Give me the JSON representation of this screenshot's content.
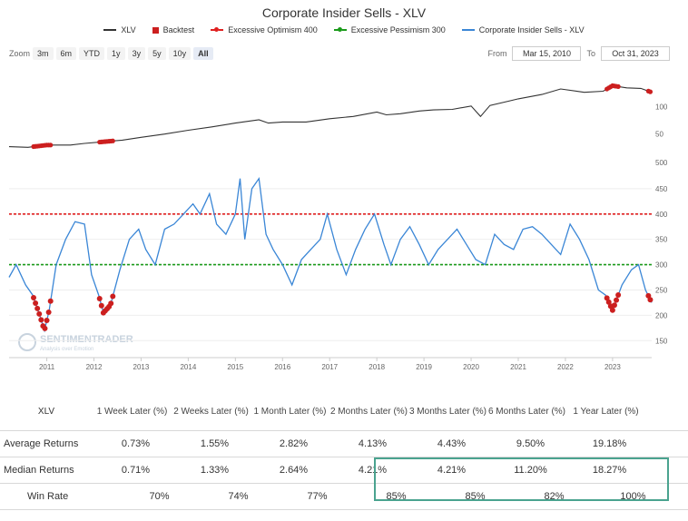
{
  "chart_data": {
    "type": "line",
    "title": "Corporate Insider Sells - XLV",
    "legend": [
      "XLV",
      "Backtest",
      "Excessive Optimism 400",
      "Excessive Pessimism 300",
      "Corporate Insider Sells - XLV"
    ],
    "x_tick_labels": [
      "2011",
      "2012",
      "2013",
      "2014",
      "2015",
      "2016",
      "2017",
      "2018",
      "2019",
      "2020",
      "2021",
      "2022",
      "2023"
    ],
    "y_upper_ticks": [
      "100",
      "50",
      "500"
    ],
    "y_lower_ticks": [
      "450",
      "400",
      "350",
      "300",
      "250",
      "200",
      "150"
    ],
    "upper_ylim": [
      0,
      175
    ],
    "lower_ylim": [
      120,
      500
    ],
    "thresholds": {
      "optimism": 400,
      "pessimism": 300
    },
    "series": [
      {
        "name": "XLV",
        "x": [
          2010.2,
          2010.6,
          2011.0,
          2011.5,
          2011.8,
          2012.2,
          2012.6,
          2013.0,
          2013.5,
          2014.0,
          2014.5,
          2015.0,
          2015.5,
          2015.7,
          2016.0,
          2016.5,
          2017.0,
          2017.5,
          2018.0,
          2018.2,
          2018.5,
          2018.9,
          2019.2,
          2019.6,
          2020.0,
          2020.2,
          2020.4,
          2020.8,
          2021.0,
          2021.5,
          2021.9,
          2022.4,
          2022.8,
          2023.0,
          2023.3,
          2023.6,
          2023.83
        ],
        "values": [
          27,
          26,
          30,
          30,
          33,
          36,
          39,
          44,
          50,
          57,
          63,
          70,
          76,
          70,
          72,
          72,
          78,
          82,
          90,
          85,
          87,
          92,
          94,
          95,
          101,
          82,
          102,
          110,
          114,
          122,
          132,
          126,
          128,
          138,
          134,
          133,
          126
        ]
      },
      {
        "name": "Corporate Insider Sells - XLV",
        "x": [
          2010.2,
          2010.35,
          2010.55,
          2010.7,
          2010.85,
          2010.95,
          2011.05,
          2011.2,
          2011.4,
          2011.6,
          2011.8,
          2011.95,
          2012.1,
          2012.2,
          2012.35,
          2012.55,
          2012.75,
          2012.95,
          2013.1,
          2013.3,
          2013.5,
          2013.7,
          2013.9,
          2014.1,
          2014.25,
          2014.45,
          2014.6,
          2014.8,
          2015.0,
          2015.1,
          2015.2,
          2015.35,
          2015.5,
          2015.65,
          2015.8,
          2016.0,
          2016.2,
          2016.4,
          2016.6,
          2016.8,
          2016.95,
          2017.15,
          2017.35,
          2017.55,
          2017.75,
          2017.95,
          2018.15,
          2018.3,
          2018.5,
          2018.7,
          2018.9,
          2019.1,
          2019.3,
          2019.5,
          2019.7,
          2019.9,
          2020.1,
          2020.3,
          2020.5,
          2020.7,
          2020.9,
          2021.1,
          2021.3,
          2021.5,
          2021.7,
          2021.9,
          2022.1,
          2022.3,
          2022.5,
          2022.7,
          2022.85,
          2023.0,
          2023.2,
          2023.4,
          2023.55,
          2023.7,
          2023.83
        ],
        "values": [
          275,
          300,
          260,
          240,
          200,
          170,
          210,
          300,
          350,
          385,
          380,
          280,
          240,
          205,
          220,
          290,
          350,
          370,
          330,
          300,
          370,
          380,
          400,
          420,
          400,
          440,
          380,
          360,
          400,
          470,
          350,
          450,
          470,
          360,
          330,
          300,
          260,
          310,
          330,
          350,
          400,
          330,
          280,
          330,
          370,
          400,
          340,
          300,
          350,
          375,
          340,
          300,
          330,
          350,
          370,
          340,
          310,
          300,
          360,
          340,
          330,
          370,
          375,
          360,
          340,
          320,
          380,
          350,
          310,
          250,
          240,
          210,
          260,
          290,
          300,
          250,
          225
        ]
      }
    ]
  },
  "zoom": {
    "label": "Zoom",
    "options": [
      "3m",
      "6m",
      "YTD",
      "1y",
      "3y",
      "5y",
      "10y",
      "All"
    ],
    "active": "All"
  },
  "range": {
    "from_label": "From",
    "from_value": "Mar 15, 2010",
    "to_label": "To",
    "to_value": "Oct 31, 2023"
  },
  "watermark": {
    "name": "SENTIMENTRADER",
    "tagline": "Analysis over Emotion"
  },
  "table": {
    "header": [
      "XLV",
      "1 Week Later (%)",
      "2 Weeks Later (%)",
      "1 Month Later (%)",
      "2 Months Later (%)",
      "3 Months Later (%)",
      "6 Months Later (%)",
      "1 Year Later (%)"
    ],
    "rows": [
      {
        "label": "Average Returns",
        "values": [
          "0.73%",
          "1.55%",
          "2.82%",
          "4.13%",
          "4.43%",
          "9.50%",
          "19.18%"
        ]
      },
      {
        "label": "Median Returns",
        "values": [
          "0.71%",
          "1.33%",
          "2.64%",
          "4.21%",
          "4.21%",
          "11.20%",
          "18.27%"
        ]
      },
      {
        "label": "Win Rate",
        "values": [
          "70%",
          "74%",
          "77%",
          "85%",
          "85%",
          "82%",
          "100%"
        ]
      }
    ]
  },
  "colors": {
    "xlv": "#333333",
    "backtest": "#cc1f1f",
    "optimism": "#e02020",
    "pessimism": "#1a9a1a",
    "insider": "#3a86d6",
    "highlight": "#4aa38f"
  }
}
